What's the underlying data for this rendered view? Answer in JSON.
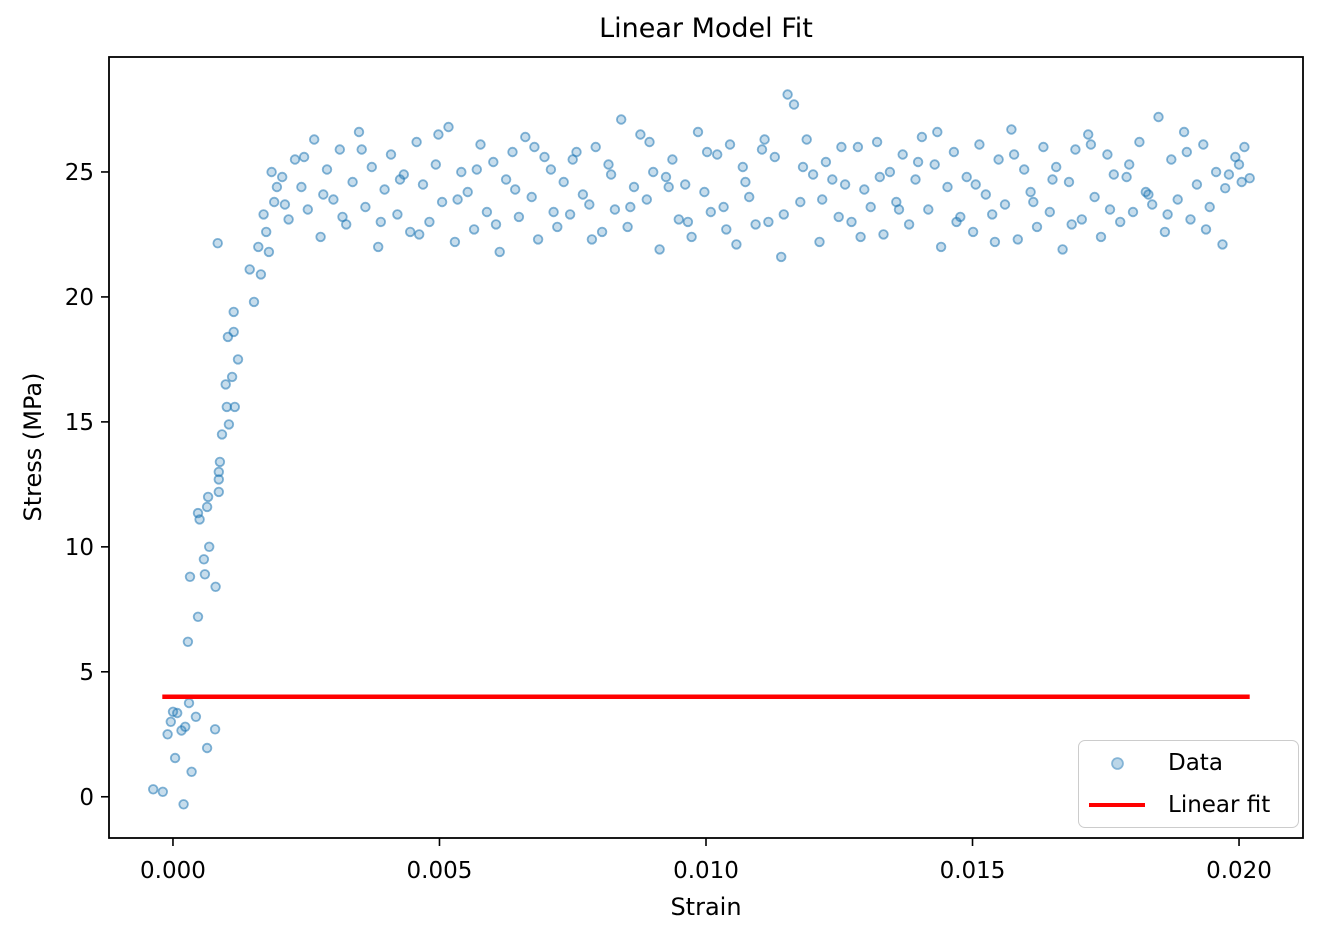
{
  "chart_data": {
    "type": "scatter",
    "title": "Linear Model Fit",
    "xlabel": "Strain",
    "ylabel": "Stress (MPa)",
    "xlim": [
      -0.0012,
      0.0212
    ],
    "ylim": [
      -1.65,
      29.6
    ],
    "x_ticks": [
      0.0,
      0.005,
      0.01,
      0.015,
      0.02
    ],
    "x_tick_labels": [
      "0.000",
      "0.005",
      "0.010",
      "0.015",
      "0.020"
    ],
    "y_ticks": [
      0,
      5,
      10,
      15,
      20,
      25
    ],
    "y_tick_labels": [
      "0",
      "5",
      "10",
      "15",
      "20",
      "25"
    ],
    "grid": false,
    "background": "#ffffff",
    "spine_color": "#000000",
    "legend": {
      "position": "lower right",
      "entries": [
        {
          "label": "Data",
          "type": "marker",
          "color": "#1f77b4"
        },
        {
          "label": "Linear fit",
          "type": "line",
          "color": "#ff0000"
        }
      ]
    },
    "series": [
      {
        "name": "Data",
        "type": "scatter",
        "color": "#1f77b4",
        "marker": "circle",
        "marker_alpha": 0.4,
        "points": [
          [
            -0.00037,
            0.3
          ],
          [
            -0.00019,
            0.2
          ],
          [
            0.0002,
            -0.3
          ],
          [
            4e-05,
            1.55
          ],
          [
            -0.0001,
            2.5
          ],
          [
            8e-05,
            3.35
          ],
          [
            -4e-05,
            3.0
          ],
          [
            0.00016,
            2.65
          ],
          [
            0.0003,
            3.75
          ],
          [
            0.0,
            3.4
          ],
          [
            0.00043,
            3.2
          ],
          [
            0.00023,
            2.8
          ],
          [
            0.00079,
            2.7
          ],
          [
            0.00035,
            1.0
          ],
          [
            0.00064,
            1.95
          ],
          [
            0.00028,
            6.2
          ],
          [
            0.00047,
            7.2
          ],
          [
            0.00032,
            8.8
          ],
          [
            0.0006,
            8.9
          ],
          [
            0.0008,
            8.4
          ],
          [
            0.00047,
            11.35
          ],
          [
            0.0005,
            11.1
          ],
          [
            0.00064,
            11.6
          ],
          [
            0.00066,
            12.0
          ],
          [
            0.00068,
            10.0
          ],
          [
            0.00086,
            12.2
          ],
          [
            0.00086,
            12.7
          ],
          [
            0.00086,
            13.0
          ],
          [
            0.00088,
            13.4
          ],
          [
            0.00092,
            14.5
          ],
          [
            0.00099,
            16.5
          ],
          [
            0.00101,
            15.6
          ],
          [
            0.00103,
            18.4
          ],
          [
            0.00105,
            14.9
          ],
          [
            0.00111,
            16.8
          ],
          [
            0.00114,
            18.6
          ],
          [
            0.00114,
            19.4
          ],
          [
            0.00116,
            15.6
          ],
          [
            0.00122,
            17.5
          ],
          [
            0.00144,
            21.1
          ],
          [
            0.00152,
            19.8
          ],
          [
            0.00084,
            22.15
          ],
          [
            0.00058,
            9.5
          ],
          [
            0.0016,
            22.0
          ],
          [
            0.0017,
            23.3
          ],
          [
            0.0018,
            21.8
          ],
          [
            0.0019,
            23.8
          ],
          [
            0.00185,
            25.0
          ],
          [
            0.00195,
            24.4
          ],
          [
            0.00165,
            20.9
          ],
          [
            0.00175,
            22.6
          ],
          [
            0.00205,
            24.8
          ],
          [
            0.00217,
            23.1
          ],
          [
            0.00229,
            25.5
          ],
          [
            0.00241,
            24.4
          ],
          [
            0.00253,
            23.5
          ],
          [
            0.00265,
            26.3
          ],
          [
            0.00277,
            22.4
          ],
          [
            0.00289,
            25.1
          ],
          [
            0.00301,
            23.9
          ],
          [
            0.00313,
            25.9
          ],
          [
            0.00325,
            22.9
          ],
          [
            0.00337,
            24.6
          ],
          [
            0.00349,
            26.6
          ],
          [
            0.00361,
            23.6
          ],
          [
            0.00373,
            25.2
          ],
          [
            0.00385,
            22.0
          ],
          [
            0.00397,
            24.3
          ],
          [
            0.00409,
            25.7
          ],
          [
            0.00421,
            23.3
          ],
          [
            0.00433,
            24.9
          ],
          [
            0.00445,
            22.6
          ],
          [
            0.00457,
            26.2
          ],
          [
            0.00469,
            24.5
          ],
          [
            0.00481,
            23.0
          ],
          [
            0.00493,
            25.3
          ],
          [
            0.00505,
            23.8
          ],
          [
            0.00517,
            26.8
          ],
          [
            0.00529,
            22.2
          ],
          [
            0.00541,
            25.0
          ],
          [
            0.00553,
            24.2
          ],
          [
            0.00565,
            22.7
          ],
          [
            0.00577,
            26.1
          ],
          [
            0.00589,
            23.4
          ],
          [
            0.00601,
            25.4
          ],
          [
            0.00613,
            21.8
          ],
          [
            0.00625,
            24.7
          ],
          [
            0.00637,
            25.8
          ],
          [
            0.00649,
            23.2
          ],
          [
            0.00661,
            26.4
          ],
          [
            0.00673,
            24.0
          ],
          [
            0.00685,
            22.3
          ],
          [
            0.00697,
            25.6
          ],
          [
            0.00709,
            25.1
          ],
          [
            0.00721,
            22.8
          ],
          [
            0.00733,
            24.6
          ],
          [
            0.00745,
            23.3
          ],
          [
            0.00757,
            25.8
          ],
          [
            0.00769,
            24.1
          ],
          [
            0.00781,
            23.7
          ],
          [
            0.00793,
            26.0
          ],
          [
            0.00805,
            22.6
          ],
          [
            0.00817,
            25.3
          ],
          [
            0.00829,
            23.5
          ],
          [
            0.00841,
            27.1
          ],
          [
            0.00853,
            22.8
          ],
          [
            0.00865,
            24.4
          ],
          [
            0.00877,
            26.5
          ],
          [
            0.00889,
            23.9
          ],
          [
            0.00901,
            25.0
          ],
          [
            0.00913,
            21.9
          ],
          [
            0.00925,
            24.8
          ],
          [
            0.00937,
            25.5
          ],
          [
            0.00949,
            23.1
          ],
          [
            0.00961,
            24.5
          ],
          [
            0.00973,
            22.4
          ],
          [
            0.00985,
            26.6
          ],
          [
            0.00997,
            24.2
          ],
          [
            0.01009,
            23.4
          ],
          [
            0.01021,
            25.7
          ],
          [
            0.01033,
            23.6
          ],
          [
            0.01045,
            26.1
          ],
          [
            0.01057,
            22.1
          ],
          [
            0.01069,
            25.2
          ],
          [
            0.01081,
            24.0
          ],
          [
            0.01093,
            22.9
          ],
          [
            0.01105,
            25.9
          ],
          [
            0.01117,
            23.0
          ],
          [
            0.01129,
            25.6
          ],
          [
            0.01141,
            21.6
          ],
          [
            0.01153,
            28.1
          ],
          [
            0.01165,
            27.7
          ],
          [
            0.01177,
            23.8
          ],
          [
            0.01189,
            26.3
          ],
          [
            0.01201,
            24.9
          ],
          [
            0.01213,
            22.2
          ],
          [
            0.01225,
            25.4
          ],
          [
            0.01237,
            24.7
          ],
          [
            0.01249,
            23.2
          ],
          [
            0.01261,
            24.5
          ],
          [
            0.01273,
            23.0
          ],
          [
            0.01285,
            26.0
          ],
          [
            0.01297,
            24.3
          ],
          [
            0.01309,
            23.6
          ],
          [
            0.01321,
            26.2
          ],
          [
            0.01333,
            22.5
          ],
          [
            0.01345,
            25.0
          ],
          [
            0.01357,
            23.8
          ],
          [
            0.01369,
            25.7
          ],
          [
            0.01381,
            22.9
          ],
          [
            0.01393,
            24.7
          ],
          [
            0.01405,
            26.4
          ],
          [
            0.01417,
            23.5
          ],
          [
            0.01429,
            25.3
          ],
          [
            0.01441,
            22.0
          ],
          [
            0.01453,
            24.4
          ],
          [
            0.01465,
            25.8
          ],
          [
            0.01477,
            23.2
          ],
          [
            0.01489,
            24.8
          ],
          [
            0.01501,
            22.6
          ],
          [
            0.01513,
            26.1
          ],
          [
            0.01525,
            24.1
          ],
          [
            0.01537,
            23.3
          ],
          [
            0.01549,
            25.5
          ],
          [
            0.01561,
            23.7
          ],
          [
            0.01573,
            26.7
          ],
          [
            0.01585,
            22.3
          ],
          [
            0.01597,
            25.1
          ],
          [
            0.01609,
            24.2
          ],
          [
            0.01621,
            22.8
          ],
          [
            0.01633,
            26.0
          ],
          [
            0.01645,
            23.4
          ],
          [
            0.01657,
            25.2
          ],
          [
            0.01669,
            21.9
          ],
          [
            0.01681,
            24.6
          ],
          [
            0.01693,
            25.9
          ],
          [
            0.01705,
            23.1
          ],
          [
            0.01717,
            26.5
          ],
          [
            0.01729,
            24.0
          ],
          [
            0.01741,
            22.4
          ],
          [
            0.01753,
            25.7
          ],
          [
            0.01765,
            24.9
          ],
          [
            0.01777,
            23.0
          ],
          [
            0.01789,
            24.8
          ],
          [
            0.01801,
            23.4
          ],
          [
            0.01813,
            26.2
          ],
          [
            0.01825,
            24.2
          ],
          [
            0.01837,
            23.7
          ],
          [
            0.01849,
            27.2
          ],
          [
            0.01861,
            22.6
          ],
          [
            0.01873,
            25.5
          ],
          [
            0.01885,
            23.9
          ],
          [
            0.01897,
            26.6
          ],
          [
            0.01909,
            23.1
          ],
          [
            0.01921,
            24.5
          ],
          [
            0.01933,
            26.1
          ],
          [
            0.01945,
            23.6
          ],
          [
            0.01957,
            25.0
          ],
          [
            0.01969,
            22.1
          ],
          [
            0.01981,
            24.9
          ],
          [
            0.01993,
            25.6
          ],
          [
            0.02,
            25.3
          ],
          [
            0.02005,
            24.6
          ],
          [
            0.0201,
            26.0
          ],
          [
            0.0202,
            24.75
          ],
          [
            0.0021,
            23.7
          ],
          [
            0.00246,
            25.6
          ],
          [
            0.00282,
            24.1
          ],
          [
            0.00318,
            23.2
          ],
          [
            0.00354,
            25.9
          ],
          [
            0.0039,
            23.0
          ],
          [
            0.00426,
            24.7
          ],
          [
            0.00462,
            22.5
          ],
          [
            0.00498,
            26.5
          ],
          [
            0.00534,
            23.9
          ],
          [
            0.0057,
            25.1
          ],
          [
            0.00606,
            22.9
          ],
          [
            0.00642,
            24.3
          ],
          [
            0.00678,
            26.0
          ],
          [
            0.00714,
            23.4
          ],
          [
            0.0075,
            25.5
          ],
          [
            0.00786,
            22.3
          ],
          [
            0.00822,
            24.9
          ],
          [
            0.00858,
            23.6
          ],
          [
            0.00894,
            26.2
          ],
          [
            0.0093,
            24.4
          ],
          [
            0.00966,
            23.0
          ],
          [
            0.01002,
            25.8
          ],
          [
            0.01038,
            22.7
          ],
          [
            0.01074,
            24.6
          ],
          [
            0.0111,
            26.3
          ],
          [
            0.01146,
            23.3
          ],
          [
            0.01182,
            25.2
          ],
          [
            0.01218,
            23.9
          ],
          [
            0.01254,
            26.0
          ],
          [
            0.0129,
            22.4
          ],
          [
            0.01326,
            24.8
          ],
          [
            0.01362,
            23.5
          ],
          [
            0.01398,
            25.4
          ],
          [
            0.01434,
            26.6
          ],
          [
            0.0147,
            23.0
          ],
          [
            0.01506,
            24.5
          ],
          [
            0.01542,
            22.2
          ],
          [
            0.01578,
            25.7
          ],
          [
            0.01614,
            23.8
          ],
          [
            0.0165,
            24.7
          ],
          [
            0.01686,
            22.9
          ],
          [
            0.01722,
            26.1
          ],
          [
            0.01758,
            23.5
          ],
          [
            0.01794,
            25.3
          ],
          [
            0.0183,
            24.1
          ],
          [
            0.01866,
            23.3
          ],
          [
            0.01902,
            25.8
          ],
          [
            0.01938,
            22.7
          ],
          [
            0.01974,
            24.35
          ]
        ]
      },
      {
        "name": "Linear fit",
        "type": "line",
        "color": "#ff0000",
        "line_width": 4.5,
        "points": [
          [
            -0.0002,
            4.0
          ],
          [
            0.0202,
            4.0
          ]
        ]
      }
    ]
  }
}
